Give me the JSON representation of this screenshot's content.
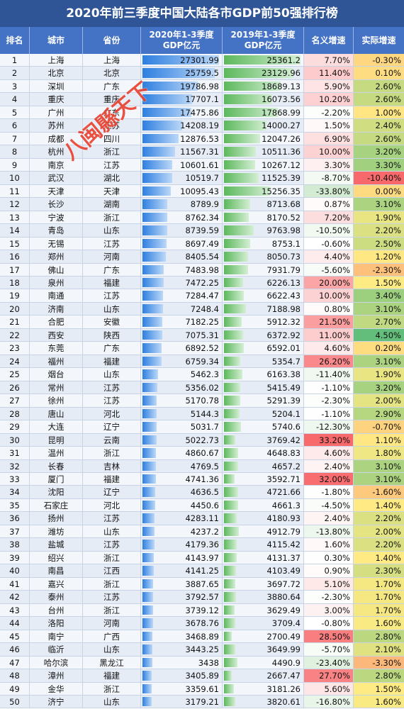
{
  "title": "2020年前三季度中国大陆各市GDP前50强排行榜",
  "headers": {
    "rank": "排名",
    "city": "城市",
    "province": "省份",
    "gdp2020_line1": "2020年1-3季度",
    "gdp2020_line2": "GDP亿元",
    "gdp2019_line1": "2019年1-3季度",
    "gdp2019_line2": "GDP亿元",
    "nominal": "名义增速",
    "real": "实际增速"
  },
  "watermark": "八闽縣天下",
  "rows": [
    {
      "rank": "1",
      "city": "上海",
      "province": "上海",
      "gdp2020": "27301.99",
      "gdp2019": "25361.2",
      "nominal": "7.70%",
      "real": "-0.30%"
    },
    {
      "rank": "2",
      "city": "北京",
      "province": "北京",
      "gdp2020": "25759.5",
      "gdp2019": "23129.96",
      "nominal": "11.40%",
      "real": "0.10%"
    },
    {
      "rank": "3",
      "city": "深圳",
      "province": "广东",
      "gdp2020": "19786.98",
      "gdp2019": "18689.13",
      "nominal": "5.90%",
      "real": "2.60%"
    },
    {
      "rank": "4",
      "city": "重庆",
      "province": "重庆",
      "gdp2020": "17707.1",
      "gdp2019": "16073.56",
      "nominal": "10.20%",
      "real": "2.60%"
    },
    {
      "rank": "5",
      "city": "广州",
      "province": "广东",
      "gdp2020": "17475.86",
      "gdp2019": "17868.99",
      "nominal": "-2.20%",
      "real": "1.00%"
    },
    {
      "rank": "6",
      "city": "苏州",
      "province": "江苏",
      "gdp2020": "14208.19",
      "gdp2019": "14000.27",
      "nominal": "1.50%",
      "real": "2.40%"
    },
    {
      "rank": "7",
      "city": "成都",
      "province": "四川",
      "gdp2020": "12876.53",
      "gdp2019": "12047.26",
      "nominal": "6.90%",
      "real": "2.60%"
    },
    {
      "rank": "8",
      "city": "杭州",
      "province": "浙江",
      "gdp2020": "11567.31",
      "gdp2019": "10511.36",
      "nominal": "10.00%",
      "real": "3.20%"
    },
    {
      "rank": "9",
      "city": "南京",
      "province": "江苏",
      "gdp2020": "10601.61",
      "gdp2019": "10267.12",
      "nominal": "3.30%",
      "real": "3.30%"
    },
    {
      "rank": "10",
      "city": "武汉",
      "province": "湖北",
      "gdp2020": "10519.7",
      "gdp2019": "11525.39",
      "nominal": "-8.70%",
      "real": "-10.40%"
    },
    {
      "rank": "11",
      "city": "天津",
      "province": "天津",
      "gdp2020": "10095.43",
      "gdp2019": "15256.35",
      "nominal": "-33.80%",
      "real": "0.00%"
    },
    {
      "rank": "12",
      "city": "长沙",
      "province": "湖南",
      "gdp2020": "8789.9",
      "gdp2019": "8713.68",
      "nominal": "0.87%",
      "real": "3.10%"
    },
    {
      "rank": "13",
      "city": "宁波",
      "province": "浙江",
      "gdp2020": "8762.34",
      "gdp2019": "8170.52",
      "nominal": "7.20%",
      "real": "1.90%"
    },
    {
      "rank": "14",
      "city": "青岛",
      "province": "山东",
      "gdp2020": "8739.59",
      "gdp2019": "9763.98",
      "nominal": "-10.50%",
      "real": "2.20%"
    },
    {
      "rank": "15",
      "city": "无锡",
      "province": "江苏",
      "gdp2020": "8697.49",
      "gdp2019": "8753.1",
      "nominal": "-0.60%",
      "real": "2.50%"
    },
    {
      "rank": "16",
      "city": "郑州",
      "province": "河南",
      "gdp2020": "8405.54",
      "gdp2019": "8050.73",
      "nominal": "4.40%",
      "real": "1.20%"
    },
    {
      "rank": "17",
      "city": "佛山",
      "province": "广东",
      "gdp2020": "7483.98",
      "gdp2019": "7931.79",
      "nominal": "-5.60%",
      "real": "-2.30%"
    },
    {
      "rank": "18",
      "city": "泉州",
      "province": "福建",
      "gdp2020": "7472.25",
      "gdp2019": "6226.13",
      "nominal": "20.00%",
      "real": "1.50%"
    },
    {
      "rank": "19",
      "city": "南通",
      "province": "江苏",
      "gdp2020": "7284.47",
      "gdp2019": "6622.43",
      "nominal": "10.00%",
      "real": "3.40%"
    },
    {
      "rank": "20",
      "city": "济南",
      "province": "山东",
      "gdp2020": "7248.4",
      "gdp2019": "7188.98",
      "nominal": "0.80%",
      "real": "3.10%"
    },
    {
      "rank": "21",
      "city": "合肥",
      "province": "安徽",
      "gdp2020": "7182.25",
      "gdp2019": "5912.32",
      "nominal": "21.50%",
      "real": "2.70%"
    },
    {
      "rank": "22",
      "city": "西安",
      "province": "陕西",
      "gdp2020": "7075.31",
      "gdp2019": "6372.92",
      "nominal": "11.00%",
      "real": "4.50%"
    },
    {
      "rank": "23",
      "city": "东莞",
      "province": "广东",
      "gdp2020": "6892.52",
      "gdp2019": "6592.01",
      "nominal": "4.60%",
      "real": "0.20%"
    },
    {
      "rank": "24",
      "city": "福州",
      "province": "福建",
      "gdp2020": "6759.34",
      "gdp2019": "5354.7",
      "nominal": "26.20%",
      "real": "3.10%"
    },
    {
      "rank": "25",
      "city": "烟台",
      "province": "山东",
      "gdp2020": "5462.3",
      "gdp2019": "6163.38",
      "nominal": "-11.40%",
      "real": "1.90%"
    },
    {
      "rank": "26",
      "city": "常州",
      "province": "江苏",
      "gdp2020": "5356.02",
      "gdp2019": "5415.49",
      "nominal": "-1.10%",
      "real": "3.20%"
    },
    {
      "rank": "27",
      "city": "徐州",
      "province": "江苏",
      "gdp2020": "5170.78",
      "gdp2019": "5291.39",
      "nominal": "-2.30%",
      "real": "2.00%"
    },
    {
      "rank": "28",
      "city": "唐山",
      "province": "河北",
      "gdp2020": "5144.3",
      "gdp2019": "5204.1",
      "nominal": "-1.10%",
      "real": "2.90%"
    },
    {
      "rank": "29",
      "city": "大连",
      "province": "辽宁",
      "gdp2020": "5031.7",
      "gdp2019": "5740.6",
      "nominal": "-12.30%",
      "real": "-0.70%"
    },
    {
      "rank": "30",
      "city": "昆明",
      "province": "云南",
      "gdp2020": "5022.73",
      "gdp2019": "3769.42",
      "nominal": "33.20%",
      "real": "1.10%"
    },
    {
      "rank": "31",
      "city": "温州",
      "province": "浙江",
      "gdp2020": "4860.67",
      "gdp2019": "4648.83",
      "nominal": "4.60%",
      "real": "1.80%"
    },
    {
      "rank": "32",
      "city": "长春",
      "province": "吉林",
      "gdp2020": "4769.5",
      "gdp2019": "4657.2",
      "nominal": "2.40%",
      "real": "3.10%"
    },
    {
      "rank": "33",
      "city": "厦门",
      "province": "福建",
      "gdp2020": "4741.36",
      "gdp2019": "3592.71",
      "nominal": "32.00%",
      "real": "3.10%"
    },
    {
      "rank": "34",
      "city": "沈阳",
      "province": "辽宁",
      "gdp2020": "4636.5",
      "gdp2019": "4721.66",
      "nominal": "-1.80%",
      "real": "-1.60%"
    },
    {
      "rank": "35",
      "city": "石家庄",
      "province": "河北",
      "gdp2020": "4450.6",
      "gdp2019": "4661.3",
      "nominal": "-4.50%",
      "real": "1.40%"
    },
    {
      "rank": "36",
      "city": "扬州",
      "province": "江苏",
      "gdp2020": "4283.11",
      "gdp2019": "4180.93",
      "nominal": "2.40%",
      "real": "2.20%"
    },
    {
      "rank": "37",
      "city": "潍坊",
      "province": "山东",
      "gdp2020": "4237.2",
      "gdp2019": "4912.79",
      "nominal": "-13.80%",
      "real": "2.00%"
    },
    {
      "rank": "38",
      "city": "盐城",
      "province": "江苏",
      "gdp2020": "4179.36",
      "gdp2019": "4115.42",
      "nominal": "1.60%",
      "real": "2.20%"
    },
    {
      "rank": "39",
      "city": "绍兴",
      "province": "浙江",
      "gdp2020": "4143.97",
      "gdp2019": "4131.37",
      "nominal": "0.30%",
      "real": "1.40%"
    },
    {
      "rank": "40",
      "city": "南昌",
      "province": "江西",
      "gdp2020": "4141.25",
      "gdp2019": "4103.49",
      "nominal": "0.90%",
      "real": "2.30%"
    },
    {
      "rank": "41",
      "city": "嘉兴",
      "province": "浙江",
      "gdp2020": "3887.65",
      "gdp2019": "3697.72",
      "nominal": "5.10%",
      "real": "1.70%"
    },
    {
      "rank": "42",
      "city": "泰州",
      "province": "江苏",
      "gdp2020": "3792.57",
      "gdp2019": "3880.64",
      "nominal": "-2.30%",
      "real": "1.70%"
    },
    {
      "rank": "43",
      "city": "台州",
      "province": "浙江",
      "gdp2020": "3739.12",
      "gdp2019": "3629.49",
      "nominal": "3.00%",
      "real": "1.70%"
    },
    {
      "rank": "44",
      "city": "洛阳",
      "province": "河南",
      "gdp2020": "3678.76",
      "gdp2019": "3709.4",
      "nominal": "-0.80%",
      "real": "1.60%"
    },
    {
      "rank": "45",
      "city": "南宁",
      "province": "广西",
      "gdp2020": "3468.89",
      "gdp2019": "2700.49",
      "nominal": "28.50%",
      "real": "2.80%"
    },
    {
      "rank": "46",
      "city": "临沂",
      "province": "山东",
      "gdp2020": "3443.25",
      "gdp2019": "3649.99",
      "nominal": "-5.70%",
      "real": "2.10%"
    },
    {
      "rank": "47",
      "city": "哈尔滨",
      "province": "黑龙江",
      "gdp2020": "3438",
      "gdp2019": "4490.9",
      "nominal": "-23.40%",
      "real": "-3.30%"
    },
    {
      "rank": "48",
      "city": "漳州",
      "province": "福建",
      "gdp2020": "3405.89",
      "gdp2019": "2667.47",
      "nominal": "27.70%",
      "real": "2.80%"
    },
    {
      "rank": "49",
      "city": "金华",
      "province": "浙江",
      "gdp2020": "3359.61",
      "gdp2019": "3181.26",
      "nominal": "5.60%",
      "real": "1.50%"
    },
    {
      "rank": "50",
      "city": "济宁",
      "province": "山东",
      "gdp2020": "3179.21",
      "gdp2019": "3820.61",
      "nominal": "-16.80%",
      "real": "1.60%"
    }
  ]
}
